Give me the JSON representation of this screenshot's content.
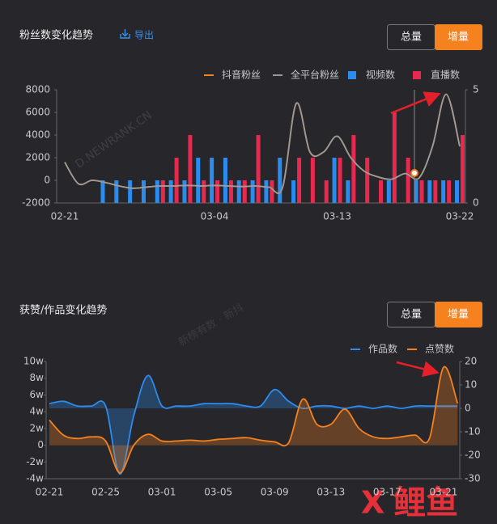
{
  "panels": [
    {
      "title": "粉丝数变化趋势",
      "export": "导出",
      "buttons": [
        "总量",
        "增量"
      ]
    },
    {
      "title": "获赞/作品变化趋势",
      "buttons": [
        "总量",
        "增量"
      ]
    }
  ],
  "watermarks": [
    "D.NEWRANK.CN",
    "新榜有数 · 新抖"
  ],
  "logo": "鲤鱼",
  "chart_data": [
    {
      "type": "combo",
      "categories": [
        "02-21",
        null,
        null,
        null,
        null,
        null,
        null,
        null,
        null,
        null,
        null,
        "03-04",
        null,
        null,
        null,
        null,
        null,
        null,
        null,
        null,
        "03-13",
        null,
        null,
        null,
        null,
        null,
        null,
        null,
        null,
        "03-22"
      ],
      "ylim": [
        -2000,
        8000
      ],
      "yticks": [
        -2000,
        0,
        2000,
        4000,
        6000,
        8000
      ],
      "y2lim": [
        0,
        5
      ],
      "y2ticks": [
        0,
        5
      ],
      "series": [
        {
          "name": "抖音粉丝",
          "type": "line",
          "color": "#f5811f",
          "values": [
            1600,
            -300,
            0,
            -200,
            -500,
            -700,
            -600,
            -500,
            -500,
            -450,
            -500,
            -450,
            -500,
            -550,
            -500,
            -600,
            -600,
            6800,
            2500,
            2500,
            3900,
            2000,
            800,
            300,
            100,
            600,
            200,
            3000,
            7600,
            3000
          ]
        },
        {
          "name": "全平台粉丝",
          "type": "line",
          "color": "#9a9a9a",
          "values": [
            1600,
            -300,
            0,
            -200,
            -500,
            -700,
            -600,
            -500,
            -500,
            -450,
            -500,
            -450,
            -500,
            -550,
            -500,
            -600,
            -600,
            6800,
            2500,
            2500,
            3900,
            2000,
            800,
            300,
            100,
            600,
            200,
            3000,
            7600,
            3000
          ]
        },
        {
          "name": "视频数",
          "type": "bar",
          "axis": "y2",
          "color": "#2b8cf0",
          "values": [
            0,
            0,
            0,
            1,
            1,
            1,
            1,
            1,
            1,
            1,
            2,
            2,
            2,
            1,
            1,
            1,
            2,
            1,
            0,
            0,
            2,
            1,
            0,
            0,
            1,
            0,
            1,
            1,
            1,
            1
          ]
        },
        {
          "name": "直播数",
          "type": "bar",
          "axis": "y2",
          "color": "#e8294f",
          "values": [
            0,
            0,
            0,
            0,
            0,
            0,
            0,
            1,
            2,
            3,
            1,
            1,
            1,
            1,
            3,
            1,
            0,
            2,
            2,
            1,
            2,
            3,
            2,
            1,
            4,
            2,
            1,
            1,
            1,
            3
          ]
        }
      ]
    },
    {
      "type": "combo",
      "categories": [
        "02-21",
        null,
        null,
        null,
        "02-25",
        null,
        null,
        null,
        "03-01",
        null,
        null,
        null,
        "03-05",
        null,
        null,
        null,
        "03-09",
        null,
        null,
        null,
        "03-13",
        null,
        null,
        null,
        "03-17",
        null,
        null,
        null,
        "03-21",
        null
      ],
      "ylim": [
        -4,
        10
      ],
      "yticks": [
        {
          "value": -4,
          "label": "-4w"
        },
        {
          "value": -2,
          "label": "-2w"
        },
        0,
        {
          "value": 2,
          "label": "2w"
        },
        {
          "value": 4,
          "label": "4w"
        },
        {
          "value": 6,
          "label": "6w"
        },
        {
          "value": 8,
          "label": "8w"
        },
        {
          "value": 10,
          "label": "10w"
        }
      ],
      "y2lim": [
        -30,
        20
      ],
      "y2ticks": [
        -30,
        -20,
        -10,
        0,
        10,
        20
      ],
      "series": [
        {
          "name": "作品数",
          "type": "area",
          "axis": "y2",
          "color": "#2b8cf0",
          "values": [
            2,
            3,
            1,
            1,
            1,
            -28,
            -3,
            14,
            1,
            1,
            1,
            2,
            2,
            2,
            1,
            1,
            8,
            3,
            0,
            1,
            1,
            0,
            1,
            0,
            1,
            0,
            1,
            1,
            1,
            1
          ]
        },
        {
          "name": "点赞数",
          "type": "area",
          "color": "#f5811f",
          "values": [
            3,
            1.2,
            0.8,
            1,
            0.5,
            -3.3,
            0,
            1.3,
            0.5,
            0.5,
            0.6,
            0.5,
            0.7,
            0.8,
            0.9,
            0.6,
            0.4,
            0.3,
            5.5,
            2.5,
            2.5,
            4.3,
            2,
            1,
            0.8,
            1,
            1.2,
            0.8,
            9.3,
            5
          ]
        }
      ]
    }
  ]
}
